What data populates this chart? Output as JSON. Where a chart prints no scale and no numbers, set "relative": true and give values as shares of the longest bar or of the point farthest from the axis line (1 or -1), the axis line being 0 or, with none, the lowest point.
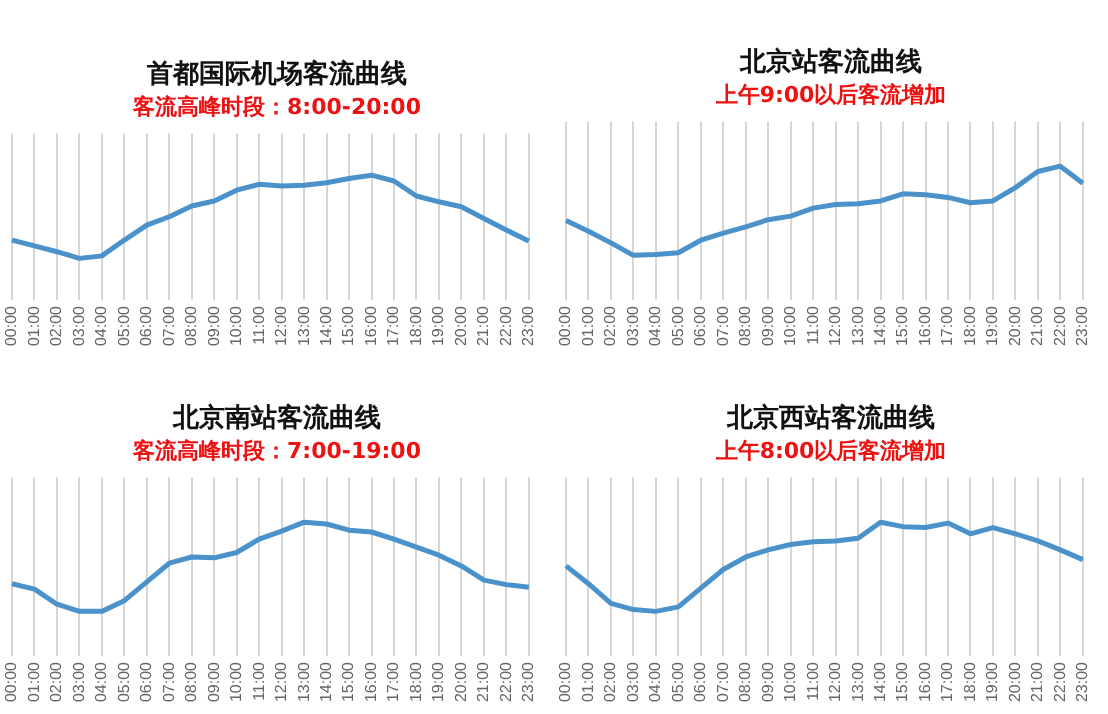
{
  "chart_data": [
    {
      "type": "line",
      "title": "首都国际机场客流曲线",
      "subtitle": "客流高峰时段：8:00-20:00",
      "relative": true,
      "grid": "x",
      "legend": false,
      "marker": "none",
      "categories": [
        "00:00",
        "01:00",
        "02:00",
        "03:00",
        "04:00",
        "05:00",
        "06:00",
        "07:00",
        "08:00",
        "09:00",
        "10:00",
        "11:00",
        "12:00",
        "13:00",
        "14:00",
        "15:00",
        "16:00",
        "17:00",
        "18:00",
        "19:00",
        "20:00",
        "21:00",
        "22:00",
        "23:00"
      ],
      "series": [
        {
          "color": "#4a92c9",
          "values": [
            0.22,
            0.15,
            0.08,
            0,
            0.03,
            0.22,
            0.4,
            0.5,
            0.63,
            0.69,
            0.82,
            0.89,
            0.87,
            0.88,
            0.91,
            0.96,
            1,
            0.93,
            0.75,
            0.68,
            0.62,
            0.48,
            0.34,
            0.21
          ]
        }
      ]
    },
    {
      "type": "line",
      "title": "北京站客流曲线",
      "subtitle": "上午9:00以后客流增加",
      "relative": true,
      "grid": "x",
      "legend": false,
      "marker": "none",
      "categories": [
        "00:00",
        "01:00",
        "02:00",
        "03:00",
        "04:00",
        "05:00",
        "06:00",
        "07:00",
        "08:00",
        "09:00",
        "10:00",
        "11:00",
        "12:00",
        "13:00",
        "14:00",
        "15:00",
        "16:00",
        "17:00",
        "18:00",
        "19:00",
        "20:00",
        "21:00",
        "22:00",
        "23:00"
      ],
      "series": [
        {
          "color": "#4a92c9",
          "values": [
            0.39,
            0.27,
            0.14,
            0,
            0.01,
            0.03,
            0.17,
            0.25,
            0.32,
            0.4,
            0.44,
            0.53,
            0.57,
            0.58,
            0.61,
            0.69,
            0.68,
            0.65,
            0.59,
            0.61,
            0.76,
            0.94,
            1,
            0.81
          ]
        }
      ]
    },
    {
      "type": "line",
      "title": "北京南站客流曲线",
      "subtitle": "客流高峰时段：7:00-19:00",
      "relative": true,
      "grid": "x",
      "legend": false,
      "marker": "none",
      "categories": [
        "00:00",
        "01:00",
        "02:00",
        "03:00",
        "04:00",
        "05:00",
        "06:00",
        "07:00",
        "08:00",
        "09:00",
        "10:00",
        "11:00",
        "12:00",
        "13:00",
        "14:00",
        "15:00",
        "16:00",
        "17:00",
        "18:00",
        "19:00",
        "20:00",
        "21:00",
        "22:00",
        "23:00"
      ],
      "series": [
        {
          "color": "#4a92c9",
          "values": [
            0.31,
            0.25,
            0.08,
            0,
            0,
            0.12,
            0.33,
            0.54,
            0.61,
            0.6,
            0.66,
            0.81,
            0.9,
            1,
            0.98,
            0.91,
            0.89,
            0.81,
            0.72,
            0.63,
            0.51,
            0.35,
            0.3,
            0.27
          ]
        }
      ]
    },
    {
      "type": "line",
      "title": "北京西站客流曲线",
      "subtitle": "上午8:00以后客流增加",
      "relative": true,
      "grid": "x",
      "legend": false,
      "marker": "none",
      "categories": [
        "00:00",
        "01:00",
        "02:00",
        "03:00",
        "04:00",
        "05:00",
        "06:00",
        "07:00",
        "08:00",
        "09:00",
        "10:00",
        "11:00",
        "12:00",
        "13:00",
        "14:00",
        "15:00",
        "16:00",
        "17:00",
        "18:00",
        "19:00",
        "20:00",
        "21:00",
        "22:00",
        "23:00"
      ],
      "series": [
        {
          "color": "#4a92c9",
          "values": [
            0.51,
            0.31,
            0.09,
            0.02,
            0,
            0.05,
            0.26,
            0.47,
            0.61,
            0.69,
            0.75,
            0.78,
            0.79,
            0.82,
            1,
            0.95,
            0.94,
            0.99,
            0.87,
            0.94,
            0.87,
            0.79,
            0.69,
            0.58
          ]
        }
      ]
    }
  ]
}
